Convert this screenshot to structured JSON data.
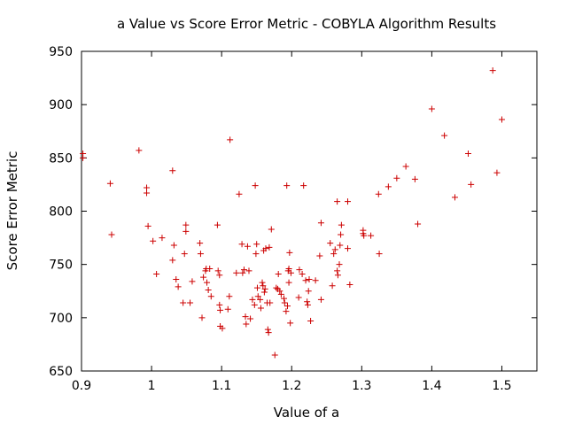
{
  "chart_data": {
    "type": "scatter",
    "title": "a Value vs Score Error Metric - COBYLA Algorithm Results",
    "xlabel": "Value of a",
    "ylabel": "Score Error Metric",
    "xlim": [
      0.9,
      1.55
    ],
    "ylim": [
      650,
      950
    ],
    "xticks": [
      "0.9",
      "1",
      "1.1",
      "1.2",
      "1.3",
      "1.4",
      "1.5"
    ],
    "xtick_values": [
      0.9,
      1.0,
      1.1,
      1.2,
      1.3,
      1.4,
      1.5
    ],
    "yticks": [
      "650",
      "700",
      "750",
      "800",
      "850",
      "900",
      "950"
    ],
    "ytick_values": [
      650,
      700,
      750,
      800,
      850,
      900,
      950
    ],
    "grid": false,
    "legend": "none",
    "marker": "plus",
    "color": "#cc0000",
    "points": [
      [
        0.902,
        850
      ],
      [
        0.902,
        854
      ],
      [
        0.941,
        826
      ],
      [
        0.943,
        778
      ],
      [
        0.982,
        857
      ],
      [
        0.993,
        822
      ],
      [
        0.993,
        817
      ],
      [
        0.995,
        786
      ],
      [
        1.002,
        772
      ],
      [
        1.007,
        741
      ],
      [
        1.015,
        775
      ],
      [
        1.03,
        838
      ],
      [
        1.03,
        754
      ],
      [
        1.032,
        768
      ],
      [
        1.035,
        736
      ],
      [
        1.038,
        729
      ],
      [
        1.045,
        714
      ],
      [
        1.047,
        760
      ],
      [
        1.049,
        787
      ],
      [
        1.049,
        781
      ],
      [
        1.055,
        714
      ],
      [
        1.058,
        734
      ],
      [
        1.069,
        770
      ],
      [
        1.07,
        760
      ],
      [
        1.072,
        700
      ],
      [
        1.074,
        738
      ],
      [
        1.077,
        744
      ],
      [
        1.078,
        746
      ],
      [
        1.079,
        733
      ],
      [
        1.081,
        726
      ],
      [
        1.083,
        746
      ],
      [
        1.085,
        720
      ],
      [
        1.094,
        787
      ],
      [
        1.095,
        744
      ],
      [
        1.097,
        740
      ],
      [
        1.097,
        712
      ],
      [
        1.098,
        707
      ],
      [
        1.098,
        692
      ],
      [
        1.101,
        690
      ],
      [
        1.109,
        708
      ],
      [
        1.111,
        720
      ],
      [
        1.112,
        867
      ],
      [
        1.121,
        742
      ],
      [
        1.125,
        816
      ],
      [
        1.129,
        769
      ],
      [
        1.13,
        742
      ],
      [
        1.132,
        745
      ],
      [
        1.134,
        701
      ],
      [
        1.135,
        694
      ],
      [
        1.137,
        767
      ],
      [
        1.139,
        744
      ],
      [
        1.141,
        699
      ],
      [
        1.144,
        717
      ],
      [
        1.147,
        712
      ],
      [
        1.148,
        824
      ],
      [
        1.149,
        760
      ],
      [
        1.15,
        769
      ],
      [
        1.151,
        728
      ],
      [
        1.152,
        720
      ],
      [
        1.155,
        717
      ],
      [
        1.156,
        709
      ],
      [
        1.158,
        733
      ],
      [
        1.159,
        730
      ],
      [
        1.16,
        763
      ],
      [
        1.161,
        724
      ],
      [
        1.162,
        727
      ],
      [
        1.163,
        765
      ],
      [
        1.165,
        714
      ],
      [
        1.166,
        689
      ],
      [
        1.167,
        686
      ],
      [
        1.168,
        766
      ],
      [
        1.169,
        714
      ],
      [
        1.171,
        783
      ],
      [
        1.176,
        665
      ],
      [
        1.178,
        728
      ],
      [
        1.18,
        727
      ],
      [
        1.181,
        741
      ],
      [
        1.183,
        725
      ],
      [
        1.185,
        722
      ],
      [
        1.189,
        718
      ],
      [
        1.19,
        714
      ],
      [
        1.192,
        706
      ],
      [
        1.193,
        824
      ],
      [
        1.194,
        711
      ],
      [
        1.195,
        744
      ],
      [
        1.196,
        746
      ],
      [
        1.196,
        733
      ],
      [
        1.197,
        761
      ],
      [
        1.198,
        695
      ],
      [
        1.199,
        742
      ],
      [
        1.21,
        719
      ],
      [
        1.211,
        745
      ],
      [
        1.215,
        741
      ],
      [
        1.217,
        824
      ],
      [
        1.22,
        735
      ],
      [
        1.222,
        715
      ],
      [
        1.223,
        712
      ],
      [
        1.224,
        725
      ],
      [
        1.225,
        736
      ],
      [
        1.227,
        697
      ],
      [
        1.234,
        735
      ],
      [
        1.24,
        758
      ],
      [
        1.242,
        717
      ],
      [
        1.242,
        789
      ],
      [
        1.255,
        770
      ],
      [
        1.258,
        730
      ],
      [
        1.26,
        760
      ],
      [
        1.262,
        764
      ],
      [
        1.265,
        809
      ],
      [
        1.265,
        744
      ],
      [
        1.266,
        740
      ],
      [
        1.268,
        750
      ],
      [
        1.269,
        768
      ],
      [
        1.27,
        778
      ],
      [
        1.271,
        787
      ],
      [
        1.28,
        809
      ],
      [
        1.28,
        765
      ],
      [
        1.283,
        731
      ],
      [
        1.302,
        779
      ],
      [
        1.302,
        782
      ],
      [
        1.303,
        777
      ],
      [
        1.313,
        777
      ],
      [
        1.324,
        816
      ],
      [
        1.325,
        760
      ],
      [
        1.338,
        823
      ],
      [
        1.35,
        831
      ],
      [
        1.363,
        842
      ],
      [
        1.376,
        830
      ],
      [
        1.38,
        788
      ],
      [
        1.4,
        896
      ],
      [
        1.418,
        871
      ],
      [
        1.433,
        813
      ],
      [
        1.452,
        854
      ],
      [
        1.456,
        825
      ],
      [
        1.487,
        932
      ],
      [
        1.493,
        836
      ],
      [
        1.5,
        886
      ]
    ]
  }
}
